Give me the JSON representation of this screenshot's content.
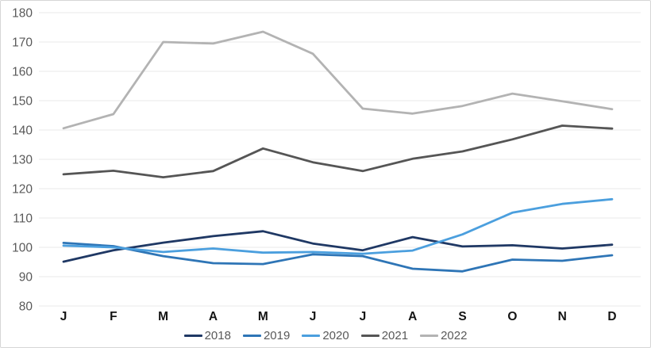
{
  "chart_data": {
    "type": "line",
    "title": "",
    "x_labels": [
      "J",
      "F",
      "M",
      "A",
      "M",
      "J",
      "J",
      "A",
      "S",
      "O",
      "N",
      "D"
    ],
    "y_ticks_top_to_bottom": [
      "180",
      "170",
      "160",
      "150",
      "140",
      "130",
      "120",
      "110",
      "100",
      "90",
      "80"
    ],
    "ylim": [
      80,
      180
    ],
    "y_tick_step": 10,
    "grid": "horizontal-only",
    "grid_color": "#e9e9e9",
    "legend_position": "bottom-center",
    "series": [
      {
        "name": "2018",
        "color": "#1f3864",
        "values": [
          95.1,
          99.0,
          101.6,
          103.8,
          105.5,
          101.3,
          99.0,
          103.5,
          100.3,
          100.7,
          99.6,
          100.9
        ]
      },
      {
        "name": "2019",
        "color": "#2e75b6",
        "values": [
          101.5,
          100.4,
          97.0,
          94.6,
          94.3,
          97.6,
          97.0,
          92.7,
          91.8,
          95.8,
          95.4,
          97.3
        ]
      },
      {
        "name": "2020",
        "color": "#4b9fde",
        "values": [
          100.6,
          100.0,
          98.4,
          99.6,
          98.2,
          98.4,
          97.8,
          98.9,
          104.4,
          111.8,
          114.8,
          116.4
        ]
      },
      {
        "name": "2021",
        "color": "#555555",
        "values": [
          124.9,
          126.1,
          123.9,
          126.0,
          133.7,
          129.0,
          126.0,
          130.2,
          132.7,
          136.8,
          141.5,
          140.5
        ]
      },
      {
        "name": "2022",
        "color": "#b3b3b3",
        "values": [
          140.6,
          145.4,
          170.0,
          169.5,
          173.5,
          166.0,
          147.3,
          145.6,
          148.2,
          152.4,
          149.8,
          147.1
        ]
      }
    ]
  }
}
